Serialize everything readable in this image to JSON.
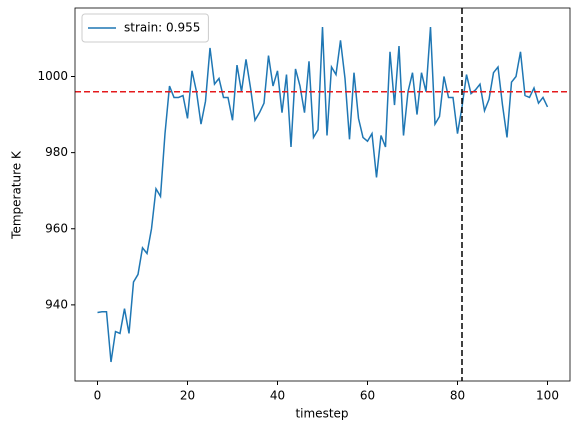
{
  "chart_data": {
    "type": "line",
    "xlabel": "timestep",
    "ylabel": "Temperature K",
    "x": [
      0,
      1,
      2,
      3,
      4,
      5,
      6,
      7,
      8,
      9,
      10,
      11,
      12,
      13,
      14,
      15,
      16,
      17,
      18,
      19,
      20,
      21,
      22,
      23,
      24,
      25,
      26,
      27,
      28,
      29,
      30,
      31,
      32,
      33,
      34,
      35,
      36,
      37,
      38,
      39,
      40,
      41,
      42,
      43,
      44,
      45,
      46,
      47,
      48,
      49,
      50,
      51,
      52,
      53,
      54,
      55,
      56,
      57,
      58,
      59,
      60,
      61,
      62,
      63,
      64,
      65,
      66,
      67,
      68,
      69,
      70,
      71,
      72,
      73,
      74,
      75,
      76,
      77,
      78,
      79,
      80,
      81,
      82,
      83,
      84,
      85,
      86,
      87,
      88,
      89,
      90,
      91,
      92,
      93,
      94,
      95,
      96,
      97,
      98,
      99,
      100
    ],
    "series": [
      {
        "name": "strain: 0.955",
        "color": "#1f77b4",
        "values": [
          938,
          938.2,
          938.2,
          925,
          933,
          932.5,
          939,
          932.5,
          946,
          948,
          955,
          953.5,
          960,
          970.5,
          968.5,
          985,
          997.5,
          994.5,
          994.5,
          995,
          989,
          1001.5,
          996,
          987.5,
          993.5,
          1007.5,
          998,
          999.5,
          994.5,
          994.5,
          988.5,
          1003,
          996,
          1004.5,
          997,
          988.5,
          990.5,
          993,
          1005.5,
          997.5,
          1001.5,
          990.5,
          1000.5,
          981.5,
          1002,
          997.5,
          990.5,
          1004,
          984,
          986,
          1013,
          984.5,
          1002.5,
          1000.5,
          1009.5,
          999.5,
          983.5,
          1001,
          989,
          984,
          983,
          985,
          973.5,
          984.5,
          981.5,
          1006.5,
          992.5,
          1008,
          984.5,
          996,
          1001,
          990,
          1001,
          996,
          1013,
          987.5,
          989.5,
          1000,
          994.5,
          994.5,
          985,
          992,
          1000.5,
          995.5,
          996.5,
          998,
          991,
          994,
          1001,
          1002.5,
          992.5,
          984,
          998.5,
          1000,
          1006.5,
          995,
          994.5,
          997,
          993,
          994.5,
          992
        ]
      }
    ],
    "hline": {
      "value": 996,
      "color": "#e41a1c"
    },
    "vline": {
      "value": 81,
      "color": "#000000"
    },
    "xlim": [
      -5,
      105
    ],
    "ylim": [
      920,
      1018
    ],
    "xticks": [
      0,
      20,
      40,
      60,
      80,
      100
    ],
    "yticks": [
      940,
      960,
      980,
      1000
    ],
    "legend": "upper left",
    "grid": false
  }
}
